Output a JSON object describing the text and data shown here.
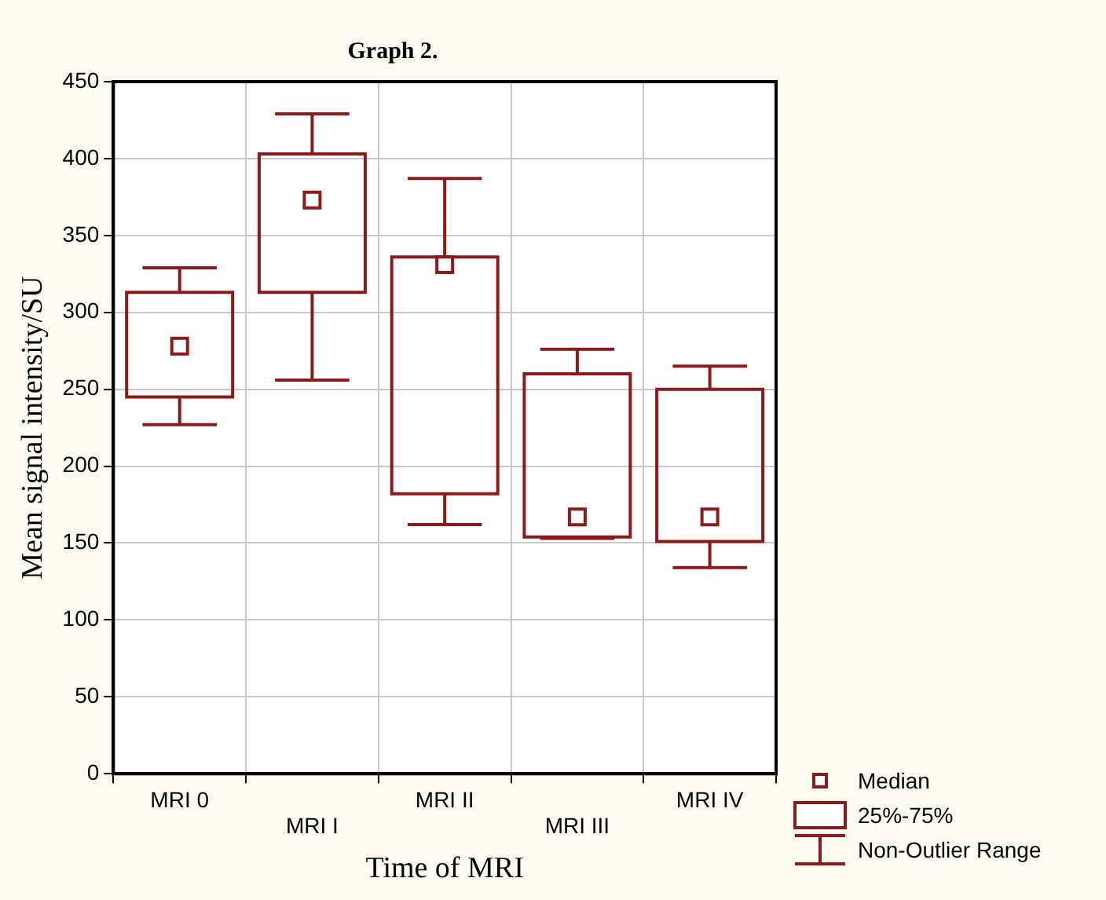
{
  "chart_data": {
    "type": "box",
    "title": "Graph 2.",
    "xlabel": "Time of MRI",
    "ylabel": "Mean signal intensity/SU",
    "categories": [
      "MRI 0",
      "MRI I",
      "MRI II",
      "MRI III",
      "MRI IV"
    ],
    "boxes": [
      {
        "low": 227,
        "q1": 245,
        "median": 278,
        "q3": 313,
        "high": 329
      },
      {
        "low": 256,
        "q1": 313,
        "median": 373,
        "q3": 403,
        "high": 429
      },
      {
        "low": 162,
        "q1": 182,
        "median": 331,
        "q3": 336,
        "high": 387
      },
      {
        "low": 153,
        "q1": 154,
        "median": 167,
        "q3": 260,
        "high": 276
      },
      {
        "low": 134,
        "q1": 151,
        "median": 167,
        "q3": 250,
        "high": 265
      }
    ],
    "color": "#8b1a1a",
    "ylim": [
      0,
      450
    ],
    "yticks": [
      0,
      50,
      100,
      150,
      200,
      250,
      300,
      350,
      400,
      450
    ],
    "grid": true,
    "annotations": [
      "Median",
      "25%-75%",
      "Non-Outlier Range"
    ]
  }
}
